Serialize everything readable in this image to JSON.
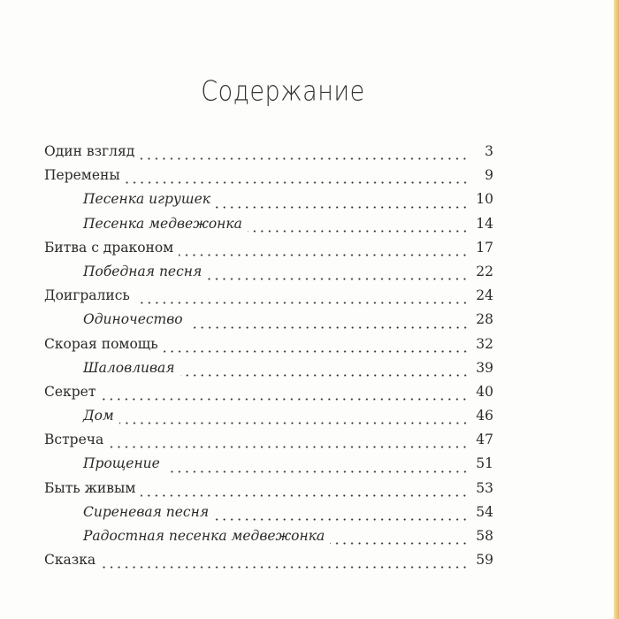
{
  "title": "Содержание",
  "entries": [
    {
      "label": "Один взгляд",
      "page": "3",
      "sub": false
    },
    {
      "label": "Перемены",
      "page": "9",
      "sub": false
    },
    {
      "label": "Песенка игрушек",
      "page": "10",
      "sub": true
    },
    {
      "label": "Песенка медвежонка",
      "page": "14",
      "sub": true
    },
    {
      "label": "Битва с драконом",
      "page": "17",
      "sub": false
    },
    {
      "label": "Победная песня",
      "page": "22",
      "sub": true
    },
    {
      "label": "Доигрались",
      "page": "24",
      "sub": false
    },
    {
      "label": "Одиночество",
      "page": "28",
      "sub": true
    },
    {
      "label": "Скорая помощь",
      "page": "32",
      "sub": false
    },
    {
      "label": "Шаловливая",
      "page": "39",
      "sub": true
    },
    {
      "label": "Секрет",
      "page": "40",
      "sub": false
    },
    {
      "label": "Дом",
      "page": "46",
      "sub": true
    },
    {
      "label": "Встреча",
      "page": "47",
      "sub": false
    },
    {
      "label": "Прощение",
      "page": "51",
      "sub": true
    },
    {
      "label": "Быть живым",
      "page": "53",
      "sub": false
    },
    {
      "label": "Сиреневая песня",
      "page": "54",
      "sub": true
    },
    {
      "label": "Радостная песенка медвежонка",
      "page": "58",
      "sub": true
    },
    {
      "label": "Сказка",
      "page": "59",
      "sub": false
    }
  ]
}
